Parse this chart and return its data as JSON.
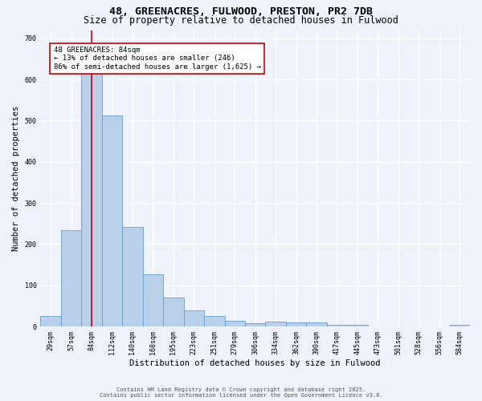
{
  "title": "48, GREENACRES, FULWOOD, PRESTON, PR2 7DB",
  "subtitle": "Size of property relative to detached houses in Fulwood",
  "xlabel": "Distribution of detached houses by size in Fulwood",
  "ylabel": "Number of detached properties",
  "bar_labels": [
    "29sqm",
    "57sqm",
    "84sqm",
    "112sqm",
    "140sqm",
    "168sqm",
    "195sqm",
    "223sqm",
    "251sqm",
    "279sqm",
    "306sqm",
    "334sqm",
    "362sqm",
    "390sqm",
    "417sqm",
    "445sqm",
    "473sqm",
    "501sqm",
    "528sqm",
    "556sqm",
    "584sqm"
  ],
  "bar_values": [
    25,
    234,
    640,
    512,
    242,
    127,
    70,
    40,
    25,
    13,
    8,
    11,
    10,
    10,
    4,
    4,
    1,
    1,
    1,
    0,
    5
  ],
  "bar_color": "#b8d0ea",
  "bar_edge_color": "#6b9fc8",
  "bar_linewidth": 0.6,
  "vline_index": 2,
  "vline_color": "#cc0000",
  "vline_linewidth": 1.2,
  "annotation_text": "48 GREENACRES: 84sqm\n← 13% of detached houses are smaller (246)\n86% of semi-detached houses are larger (1,625) →",
  "annotation_box_facecolor": "#ffffff",
  "annotation_box_edgecolor": "#cc0000",
  "ylim": [
    0,
    720
  ],
  "yticks": [
    0,
    100,
    200,
    300,
    400,
    500,
    600,
    700
  ],
  "background_color": "#eef2fb",
  "grid_color": "#ffffff",
  "footer1": "Contains HM Land Registry data © Crown copyright and database right 2025.",
  "footer2": "Contains public sector information licensed under the Open Government Licence v3.0.",
  "title_fontsize": 9.5,
  "subtitle_fontsize": 8.5,
  "xlabel_fontsize": 7.5,
  "ylabel_fontsize": 7.5,
  "tick_fontsize": 6.0,
  "annot_fontsize": 6.5,
  "footer_fontsize": 5.0
}
